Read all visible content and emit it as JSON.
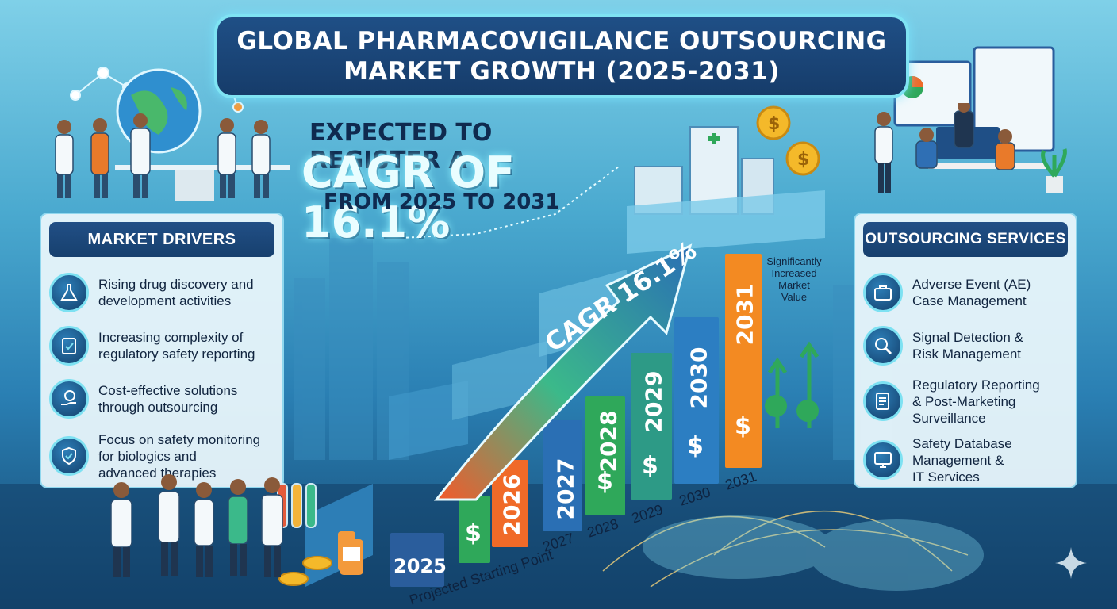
{
  "title": {
    "line1": "GLOBAL PHARMACOVIGILANCE OUTSOURCING",
    "line2": "MARKET GROWTH (2025-2031)"
  },
  "headline": {
    "line1": "EXPECTED TO REGISTER A",
    "line2": "CAGR OF 16.1%",
    "line3": "FROM 2025 TO 2031"
  },
  "market_drivers": {
    "heading": "MARKET DRIVERS",
    "items": [
      {
        "text": "Rising drug discovery and\ndevelopment activities",
        "icon": "flask-icon"
      },
      {
        "text": "Increasing complexity of\nregulatory safety reporting",
        "icon": "clipboard-check-icon"
      },
      {
        "text": "Cost-effective solutions\nthrough outsourcing",
        "icon": "money-hand-icon"
      },
      {
        "text": "Focus on safety monitoring\nfor biologics and\nadvanced therapies",
        "icon": "shield-check-icon"
      }
    ]
  },
  "outsourcing_services": {
    "heading": "OUTSOURCING SERVICES",
    "items": [
      {
        "text": "Adverse Event (AE)\nCase Management",
        "icon": "briefcase-icon"
      },
      {
        "text": "Signal Detection &\nRisk Management",
        "icon": "magnifier-icon"
      },
      {
        "text": "Regulatory Reporting\n& Post-Marketing\nSurveillance",
        "icon": "document-icon"
      },
      {
        "text": "Safety Database\nManagement &\nIT Services",
        "icon": "computer-icon"
      }
    ]
  },
  "growth": {
    "arrow_label": "CAGR 16.1%",
    "start_label": "Projected Starting Point",
    "end_note": "Significantly\nIncreased\nMarket\nValue",
    "currency_symbol": "$",
    "bars": [
      {
        "year": "2025",
        "color": "#2a5d9c"
      },
      {
        "year": "2026",
        "color": "#f06a28"
      },
      {
        "year": "2027",
        "color": "#2a6fb4"
      },
      {
        "year": "2028",
        "color": "#2fa85a"
      },
      {
        "year": "2029",
        "color": "#2d9a86"
      },
      {
        "year": "2030",
        "color": "#2c7ec2"
      },
      {
        "year": "2031",
        "color": "#f38a22"
      }
    ],
    "axis_years": [
      "2027",
      "2028",
      "2029",
      "2030",
      "2031"
    ]
  }
}
